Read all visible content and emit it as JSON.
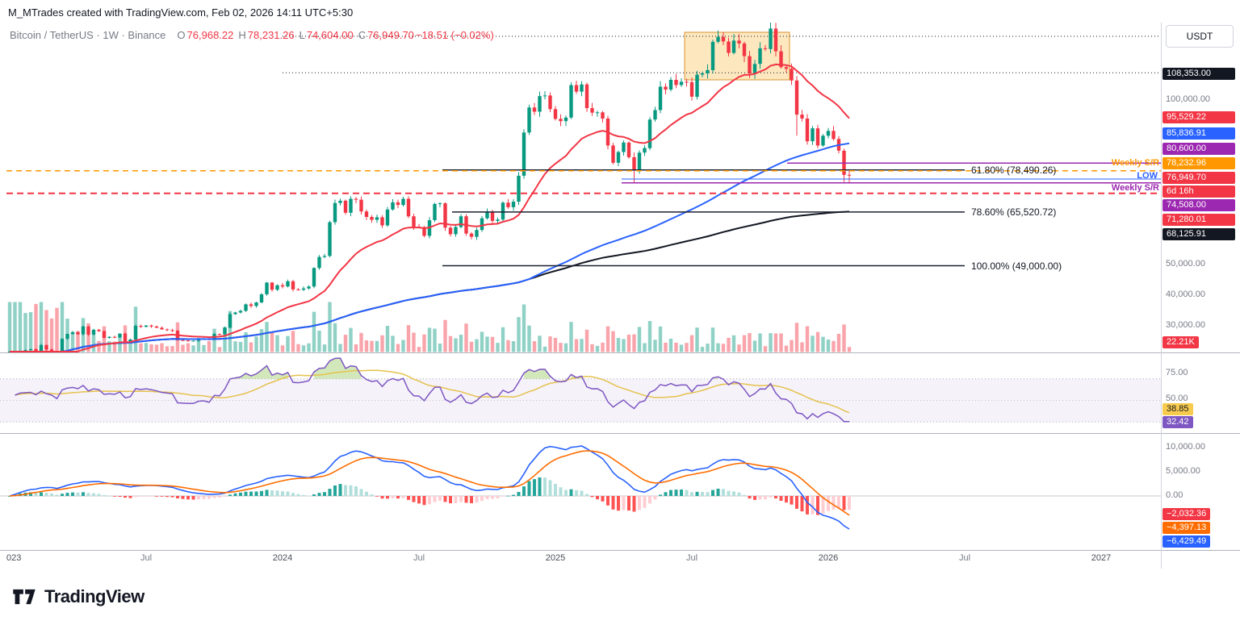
{
  "watermark": "M_MTrades created with TradingView.com, Feb 02, 2026 14:11 UTC+5:30",
  "legend": {
    "symbol": "Bitcoin / TetherUS · 1W · Binance",
    "o_label": "O",
    "o": "76,968.22",
    "h_label": "H",
    "h": "78,231.26",
    "l_label": "L",
    "l": "74,604.00",
    "c_label": "C",
    "c": "76,949.70",
    "change": "−18.51 (−0.02%)"
  },
  "price_axis": {
    "currency": "USDT",
    "labels": [
      "100,000.00",
      "50,000.00",
      "40,000.00",
      "30,000.00"
    ]
  },
  "price_tags": [
    {
      "label": "108,353.00",
      "bg": "#131722",
      "fg": "#ffffff"
    },
    {
      "label": "95,529.22",
      "bg": "#f23645",
      "fg": "#ffffff"
    },
    {
      "label": "85,836.91",
      "bg": "#2962ff",
      "fg": "#ffffff"
    },
    {
      "label": "80,600.00",
      "bg": "#9c27b0",
      "fg": "#ffffff"
    },
    {
      "label": "78,232.96",
      "bg": "#ff9800",
      "fg": "#ffffff"
    },
    {
      "label": "76,949.70",
      "bg": "#f23645",
      "fg": "#ffffff"
    },
    {
      "label": "6d 16h",
      "bg": "#f23645",
      "fg": "#ffffff"
    },
    {
      "label": "74,508.00",
      "bg": "#9c27b0",
      "fg": "#ffffff"
    },
    {
      "label": "71,280.01",
      "bg": "#f23645",
      "fg": "#ffffff"
    },
    {
      "label": "68,125.91",
      "bg": "#131722",
      "fg": "#ffffff"
    }
  ],
  "volume_tag": {
    "label": "22.21K",
    "bg": "#f23645",
    "fg": "#ffffff"
  },
  "fib_labels": [
    "61.80% (78,490.26)",
    "78.60% (65,520.72)",
    "100.00% (49,000.00)"
  ],
  "annotations": {
    "weekly_sr_upper": {
      "text": "Weekly S/R",
      "color": "#ff9800"
    },
    "low": {
      "text": "LOW",
      "color": "#2962ff"
    },
    "weekly_sr_lower": {
      "text": "Weekly S/R",
      "color": "#9c27b0"
    }
  },
  "rsi_axis": {
    "labels": [
      "75.00",
      "50.00"
    ],
    "tags": [
      {
        "label": "38.85",
        "bg": "#f7cb4d",
        "fg": "#131722"
      },
      {
        "label": "32.42",
        "bg": "#7e57c2",
        "fg": "#ffffff"
      }
    ]
  },
  "macd_axis": {
    "labels": [
      "10,000.00",
      "5,000.00",
      "0.00"
    ],
    "tags": [
      {
        "label": "−2,032.36",
        "bg": "#f23645",
        "fg": "#ffffff"
      },
      {
        "label": "−4,397.13",
        "bg": "#ff6d00",
        "fg": "#ffffff"
      },
      {
        "label": "−6,429.49",
        "bg": "#2962ff",
        "fg": "#ffffff"
      }
    ]
  },
  "time_axis": [
    "023",
    "Jul",
    "2024",
    "Jul",
    "2025",
    "Jul",
    "2026",
    "Jul",
    "2027"
  ],
  "footer": {
    "brand": "TradingView"
  },
  "colors": {
    "up": "#089981",
    "down": "#f23645",
    "ma_fast": "#f23645",
    "ma_mid": "#2962ff",
    "ma_slow": "#131722",
    "rsi": "#7e57c2",
    "rsi_ma": "#e6c24d",
    "macd_line": "#2962ff",
    "signal_line": "#ff6d00",
    "hist_up": "#26a69a",
    "hist_up_weak": "#b2dfdb",
    "hist_down": "#ff5252",
    "hist_down_weak": "#ffcdd2"
  },
  "chart_data": {
    "type": "candlestick",
    "title": "Bitcoin / TetherUS · 1W · Binance",
    "timeframe": "1W",
    "x_range": [
      "Jan 2023",
      "Feb 2026 (axis extends to 2027)"
    ],
    "series_unit": "thousand USDT",
    "weekly_closes_k": [
      16.7,
      20.9,
      22.7,
      23.0,
      23.3,
      21.9,
      24.6,
      23.2,
      22.4,
      20.5,
      26.5,
      28.0,
      28.5,
      27.9,
      30.3,
      27.8,
      29.3,
      28.9,
      26.8,
      27.1,
      26.9,
      28.1,
      25.7,
      26.3,
      30.5,
      30.2,
      30.6,
      30.3,
      29.9,
      29.4,
      29.2,
      29.0,
      26.1,
      26.0,
      25.9,
      25.9,
      26.5,
      26.6,
      26.2,
      28.0,
      27.9,
      29.9,
      34.1,
      34.6,
      35.1,
      37.1,
      36.6,
      37.7,
      40.2,
      43.8,
      41.6,
      43.0,
      42.6,
      44.2,
      41.7,
      41.6,
      42.0,
      42.6,
      48.3,
      51.7,
      52.0,
      62.4,
      68.3,
      69.0,
      65.3,
      69.6,
      69.3,
      65.7,
      64.0,
      63.1,
      63.9,
      61.4,
      66.3,
      68.5,
      67.7,
      69.6,
      64.2,
      61.0,
      60.9,
      58.2,
      63.0,
      68.0,
      68.2,
      60.7,
      58.7,
      60.9,
      64.2,
      58.9,
      57.9,
      60.0,
      63.6,
      65.6,
      62.8,
      63.2,
      68.4,
      67.0,
      68.7,
      76.7,
      90.0,
      97.7,
      96.4,
      101.2,
      101.4,
      97.2,
      94.2,
      93.5,
      94.6,
      104.6,
      102.6,
      104.8,
      97.5,
      96.1,
      96.2,
      94.3,
      86.0,
      80.7,
      84.0,
      86.9,
      82.4,
      78.4,
      83.8,
      85.2,
      94.0,
      96.9,
      104.1,
      103.2,
      106.2,
      104.6,
      105.6,
      105.5,
      101.0,
      107.8,
      108.2,
      109.2,
      117.9,
      119.4,
      118.0,
      114.5,
      118.3,
      117.4,
      113.5,
      108.2,
      111.1,
      115.9,
      115.7,
      122.0,
      115.0,
      110.1,
      109.6,
      106.0,
      95.5,
      94.3,
      87.3,
      91.3,
      86.0,
      89.0,
      90.5,
      88.0,
      84.4,
      76.97,
      76.95
    ],
    "wick_overrides_k": {
      "119": {
        "low": 74.5
      },
      "145": {
        "high": 124.2
      },
      "150": {
        "low": 89.0
      },
      "159": {
        "low": 74.7
      }
    },
    "last_candle": {
      "open": 76968.22,
      "high": 78231.26,
      "low": 74604.0,
      "close": 76949.7,
      "change": -18.51,
      "change_pct": -0.02
    },
    "countdown": "6d 16h",
    "moving_averages": [
      {
        "name": "fast",
        "color": "#f23645",
        "last": 95529.22
      },
      {
        "name": "mid",
        "color": "#2962ff",
        "last": 85836.91
      },
      {
        "name": "slow",
        "color": "#131722",
        "last": 68125.91
      }
    ],
    "horizontal_levels": [
      {
        "price": 108353.0,
        "style": "dotted",
        "color": "#131722"
      },
      {
        "price": 80600.0,
        "style": "solid",
        "color": "#9c27b0",
        "label": "Weekly S/R"
      },
      {
        "price": 78232.96,
        "style": "dashed",
        "color": "#ff9800",
        "label": "Weekly S/R"
      },
      {
        "price": 76949.7,
        "style": "last-price",
        "color": "#f23645"
      },
      {
        "price": 74604.0,
        "style": "solid",
        "color": "#2962ff",
        "label": "LOW"
      },
      {
        "price": 74508.0,
        "style": "solid",
        "color": "#9c27b0",
        "label": "Weekly S/R"
      },
      {
        "price": 71280.01,
        "style": "dashed",
        "color": "#f23645"
      }
    ],
    "fib_retracement": [
      {
        "pct": 61.8,
        "price": 78490.26
      },
      {
        "pct": 78.6,
        "price": 65520.72
      },
      {
        "pct": 100.0,
        "price": 49000.0
      }
    ],
    "highlight_box": {
      "from": "Jul 2025",
      "to": "Nov 2025",
      "top_k": 119.8,
      "bottom_k": 105.2
    },
    "indicators": {
      "rsi": {
        "last": 32.42,
        "ma_last": 38.85,
        "axis_ticks": [
          75,
          50
        ]
      },
      "macd": {
        "macd_last": -6429.49,
        "signal_last": -4397.13,
        "hist_last": -2032.36,
        "axis_ticks": [
          10000,
          5000,
          0
        ]
      }
    },
    "volume_last_label": "22.21K",
    "price_axis_ticks": [
      100000,
      50000,
      40000,
      30000
    ]
  }
}
